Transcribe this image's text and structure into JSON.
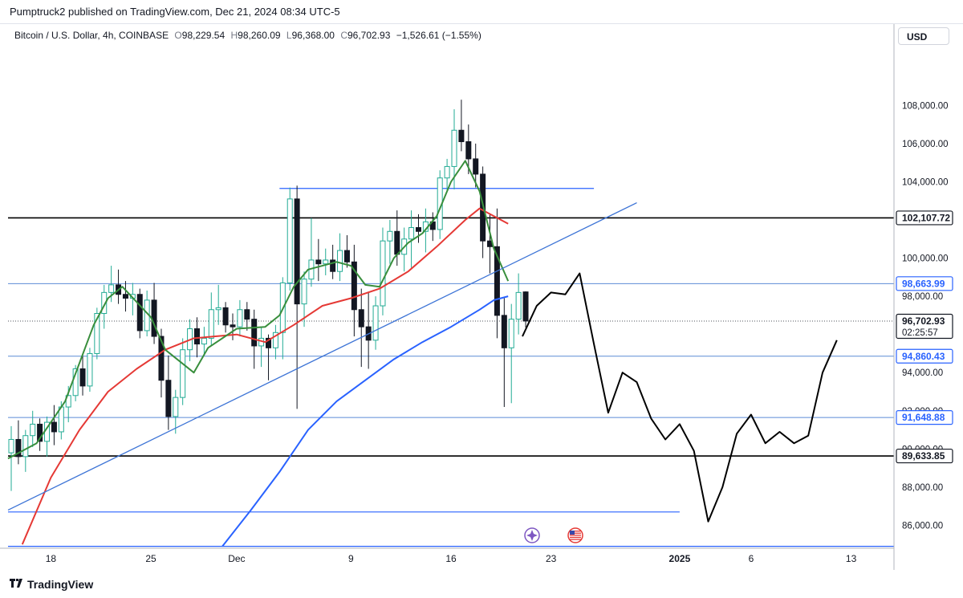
{
  "header": {
    "text": "Pumptruck2 published on TradingView.com, Dec 21, 2024 08:34 UTC-5"
  },
  "symbol": {
    "name": "Bitcoin / U.S. Dollar, 4h, COINBASE",
    "open_label": "O",
    "open": "98,229.54",
    "high_label": "H",
    "high": "98,260.09",
    "low_label": "L",
    "low": "96,368.00",
    "close_label": "C",
    "close": "96,702.93",
    "change": "−1,526.61 (−1.55%)"
  },
  "currency_button": "USD",
  "branding": "TradingView",
  "colors": {
    "up": "#22ab94",
    "down": "#131722",
    "ma_short": "#388e3c",
    "ma_mid": "#e53935",
    "ma_long": "#2962ff",
    "hline_blue": "#5b8bd6",
    "hline_black": "#000000"
  },
  "chart_data": {
    "type": "candlestick",
    "title": "Bitcoin / U.S. Dollar, 4h, COINBASE",
    "price_axis": {
      "ylim": [
        84800,
        111000
      ],
      "ticks": [
        86000,
        88000,
        90000,
        92000,
        94000,
        96000,
        98000,
        100000,
        102000,
        104000,
        106000,
        108000
      ],
      "tick_labels": [
        "86,000.00",
        "88,000.00",
        "90,000.00",
        "92,000.00",
        "94,000.00",
        "96,000.00",
        "98,000.00",
        "100,000.00",
        "102,000.00",
        "104,000.00",
        "106,000.00",
        "108,000.00"
      ]
    },
    "time_axis": {
      "xlim": [
        "2024-11-15",
        "2025-01-16"
      ],
      "ticks": [
        "2024-11-18",
        "2024-11-25",
        "2024-12-01",
        "2024-12-09",
        "2024-12-16",
        "2024-12-23",
        "2025-01-01",
        "2025-01-06",
        "2025-01-13"
      ],
      "tick_labels": [
        "18",
        "25",
        "Dec",
        "9",
        "16",
        "23",
        "2025",
        "6",
        "13"
      ]
    },
    "price_labels": [
      {
        "value": 102107.72,
        "text": "102,107.72",
        "style": "black"
      },
      {
        "value": 98663.99,
        "text": "98,663.99",
        "style": "blue"
      },
      {
        "value": 96702.93,
        "text": "96,702.93",
        "style": "dark",
        "countdown": "02:25:57"
      },
      {
        "value": 94860.43,
        "text": "94,860.43",
        "style": "blue"
      },
      {
        "value": 91648.88,
        "text": "91,648.88",
        "style": "blue"
      },
      {
        "value": 89633.85,
        "text": "89,633.85",
        "style": "black"
      }
    ],
    "horizontal_lines": [
      {
        "value": 102107.72,
        "from": "2024-11-15",
        "to": "2025-01-16",
        "color": "#000000",
        "width": 1.6
      },
      {
        "value": 98663.99,
        "from": "2024-11-15",
        "to": "2025-01-16",
        "color": "#5b8bd6",
        "width": 1
      },
      {
        "value": 94860.43,
        "from": "2024-11-15",
        "to": "2025-01-16",
        "color": "#5b8bd6",
        "width": 1
      },
      {
        "value": 91648.88,
        "from": "2024-11-15",
        "to": "2025-01-16",
        "color": "#5b8bd6",
        "width": 1
      },
      {
        "value": 89633.85,
        "from": "2024-11-15",
        "to": "2025-01-16",
        "color": "#000000",
        "width": 1.6
      },
      {
        "value": 103650,
        "from": "2024-12-04",
        "to": "2024-12-26",
        "color": "#2962ff",
        "width": 1.2
      },
      {
        "value": 86700,
        "from": "2024-11-15",
        "to": "2025-01-01",
        "color": "#2962ff",
        "width": 1.2
      },
      {
        "value": 84900,
        "from": "2024-11-15",
        "to": "2025-01-16",
        "color": "#2962ff",
        "width": 1.2
      }
    ],
    "trendline": {
      "points": [
        [
          "2024-11-15",
          86800
        ],
        [
          "2024-12-29",
          102900
        ]
      ],
      "color": "#3d74d6"
    },
    "ma_short": {
      "color": "#388e3c",
      "points": [
        [
          "2024-11-15",
          89500
        ],
        [
          "2024-11-17",
          90300
        ],
        [
          "2024-11-19",
          92500
        ],
        [
          "2024-11-21",
          96500
        ],
        [
          "2024-11-22",
          97900
        ],
        [
          "2024-11-23",
          98500
        ],
        [
          "2024-11-25",
          96900
        ],
        [
          "2024-11-26",
          95200
        ],
        [
          "2024-11-28",
          94000
        ],
        [
          "2024-11-29",
          95300
        ],
        [
          "2024-12-01",
          96300
        ],
        [
          "2024-12-03",
          96400
        ],
        [
          "2024-12-04",
          97000
        ],
        [
          "2024-12-05",
          98500
        ],
        [
          "2024-12-06",
          99400
        ],
        [
          "2024-12-08",
          99800
        ],
        [
          "2024-12-09",
          99600
        ],
        [
          "2024-12-10",
          98600
        ],
        [
          "2024-12-11",
          98500
        ],
        [
          "2024-12-12",
          100000
        ],
        [
          "2024-12-13",
          100800
        ],
        [
          "2024-12-14",
          101300
        ],
        [
          "2024-12-15",
          102200
        ],
        [
          "2024-12-16",
          104000
        ],
        [
          "2024-12-17",
          105100
        ],
        [
          "2024-12-18",
          103500
        ],
        [
          "2024-12-19",
          100500
        ],
        [
          "2024-12-20",
          98800
        ]
      ]
    },
    "ma_mid": {
      "color": "#e53935",
      "points": [
        [
          "2024-11-16",
          85000
        ],
        [
          "2024-11-18",
          88500
        ],
        [
          "2024-11-20",
          91000
        ],
        [
          "2024-11-22",
          93000
        ],
        [
          "2024-11-24",
          94200
        ],
        [
          "2024-11-26",
          95200
        ],
        [
          "2024-11-28",
          95800
        ],
        [
          "2024-12-01",
          96000
        ],
        [
          "2024-12-03",
          95600
        ],
        [
          "2024-12-05",
          96500
        ],
        [
          "2024-12-07",
          97500
        ],
        [
          "2024-12-09",
          97900
        ],
        [
          "2024-12-11",
          98400
        ],
        [
          "2024-12-13",
          99300
        ],
        [
          "2024-12-15",
          100600
        ],
        [
          "2024-12-17",
          102000
        ],
        [
          "2024-12-18",
          102600
        ],
        [
          "2024-12-19",
          102200
        ],
        [
          "2024-12-20",
          101800
        ]
      ]
    },
    "ma_long": {
      "color": "#2962ff",
      "points": [
        [
          "2024-11-30",
          84900
        ],
        [
          "2024-12-02",
          86800
        ],
        [
          "2024-12-04",
          88800
        ],
        [
          "2024-12-06",
          91000
        ],
        [
          "2024-12-08",
          92500
        ],
        [
          "2024-12-10",
          93600
        ],
        [
          "2024-12-12",
          94700
        ],
        [
          "2024-12-14",
          95600
        ],
        [
          "2024-12-16",
          96400
        ],
        [
          "2024-12-18",
          97300
        ],
        [
          "2024-12-19",
          97800
        ],
        [
          "2024-12-20",
          98000
        ]
      ]
    },
    "projection": {
      "color": "#000000",
      "points": [
        [
          "2024-12-21",
          95900
        ],
        [
          "2024-12-22",
          97500
        ],
        [
          "2024-12-23",
          98200
        ],
        [
          "2024-12-24",
          98100
        ],
        [
          "2024-12-25",
          99200
        ],
        [
          "2024-12-26",
          95500
        ],
        [
          "2024-12-27",
          91900
        ],
        [
          "2024-12-28",
          94000
        ],
        [
          "2024-12-29",
          93500
        ],
        [
          "2024-12-30",
          91600
        ],
        [
          "2024-12-31",
          90500
        ],
        [
          "2025-01-01",
          91300
        ],
        [
          "2025-01-02",
          89900
        ],
        [
          "2025-01-03",
          86200
        ],
        [
          "2025-01-04",
          88000
        ],
        [
          "2025-01-05",
          90800
        ],
        [
          "2025-01-06",
          91800
        ],
        [
          "2025-01-07",
          90300
        ],
        [
          "2025-01-08",
          90900
        ],
        [
          "2025-01-09",
          90300
        ],
        [
          "2025-01-10",
          90700
        ],
        [
          "2025-01-11",
          94000
        ],
        [
          "2025-01-12",
          95700
        ]
      ]
    },
    "candles_ohlc": [
      [
        "2024-11-15",
        89800,
        91200,
        87800,
        90500
      ],
      [
        "2024-11-15T12",
        90500,
        91500,
        89200,
        89600
      ],
      [
        "2024-11-16",
        89600,
        91000,
        88800,
        90700
      ],
      [
        "2024-11-16T12",
        90700,
        92000,
        90100,
        91300
      ],
      [
        "2024-11-17",
        91300,
        91600,
        89900,
        90400
      ],
      [
        "2024-11-17T12",
        90400,
        91700,
        89600,
        91400
      ],
      [
        "2024-11-18",
        91400,
        92300,
        90200,
        90900
      ],
      [
        "2024-11-18T12",
        90900,
        92500,
        90500,
        92200
      ],
      [
        "2024-11-19",
        92200,
        93300,
        91400,
        92800
      ],
      [
        "2024-11-19T12",
        92800,
        94400,
        92500,
        94200
      ],
      [
        "2024-11-20",
        94200,
        95000,
        92800,
        93300
      ],
      [
        "2024-11-20T12",
        93300,
        95300,
        93000,
        95000
      ],
      [
        "2024-11-21",
        95000,
        97400,
        94700,
        97100
      ],
      [
        "2024-11-21T12",
        97100,
        98600,
        96300,
        98200
      ],
      [
        "2024-11-22",
        98200,
        99600,
        97700,
        98600
      ],
      [
        "2024-11-22T12",
        98600,
        99400,
        97600,
        98100
      ],
      [
        "2024-11-23",
        98100,
        98800,
        97200,
        97900
      ],
      [
        "2024-11-23T12",
        97900,
        98700,
        97000,
        98100
      ],
      [
        "2024-11-24",
        98100,
        98400,
        95800,
        96200
      ],
      [
        "2024-11-24T12",
        96200,
        98300,
        95900,
        97800
      ],
      [
        "2024-11-25",
        97800,
        98700,
        95500,
        95900
      ],
      [
        "2024-11-25T12",
        95900,
        96300,
        92700,
        93600
      ],
      [
        "2024-11-26",
        93600,
        94900,
        91000,
        91700
      ],
      [
        "2024-11-26T12",
        91700,
        93100,
        90800,
        92700
      ],
      [
        "2024-11-27",
        92700,
        95800,
        92300,
        95200
      ],
      [
        "2024-11-27T12",
        95200,
        96800,
        94600,
        96300
      ],
      [
        "2024-11-28",
        96300,
        96900,
        94800,
        95500
      ],
      [
        "2024-11-28T12",
        95500,
        96400,
        94900,
        95800
      ],
      [
        "2024-11-29",
        95800,
        98200,
        95400,
        97300
      ],
      [
        "2024-11-29T12",
        97300,
        98600,
        96500,
        97400
      ],
      [
        "2024-11-30",
        97400,
        97700,
        96100,
        96500
      ],
      [
        "2024-11-30T12",
        96500,
        97100,
        95700,
        96400
      ],
      [
        "2024-12-01",
        96400,
        97800,
        95900,
        97300
      ],
      [
        "2024-12-01T12",
        97300,
        97700,
        96200,
        96800
      ],
      [
        "2024-12-02",
        96800,
        97300,
        94200,
        95400
      ],
      [
        "2024-12-02T12",
        95400,
        96400,
        94300,
        95800
      ],
      [
        "2024-12-03",
        95800,
        96000,
        93600,
        95300
      ],
      [
        "2024-12-03T12",
        95300,
        96500,
        94700,
        96100
      ],
      [
        "2024-12-04",
        96100,
        99000,
        94700,
        98700
      ],
      [
        "2024-12-04T12",
        98700,
        103700,
        98300,
        103100
      ],
      [
        "2024-12-05",
        103100,
        103800,
        92100,
        97600
      ],
      [
        "2024-12-05T12",
        97600,
        99300,
        96400,
        98900
      ],
      [
        "2024-12-06",
        98900,
        102100,
        98500,
        99900
      ],
      [
        "2024-12-06T12",
        99900,
        101000,
        98800,
        99700
      ],
      [
        "2024-12-07",
        99700,
        100500,
        99100,
        99900
      ],
      [
        "2024-12-07T12",
        99900,
        100700,
        98900,
        99300
      ],
      [
        "2024-12-08",
        99300,
        101300,
        98800,
        100400
      ],
      [
        "2024-12-08T12",
        100400,
        101200,
        99500,
        99800
      ],
      [
        "2024-12-09",
        99800,
        100700,
        95900,
        97300
      ],
      [
        "2024-12-09T12",
        97300,
        98400,
        94300,
        96400
      ],
      [
        "2024-12-10",
        96400,
        98200,
        94200,
        95700
      ],
      [
        "2024-12-10T12",
        95700,
        98000,
        95200,
        97500
      ],
      [
        "2024-12-11",
        97500,
        101600,
        97000,
        100900
      ],
      [
        "2024-12-11T12",
        100900,
        102000,
        99700,
        101400
      ],
      [
        "2024-12-12",
        101400,
        102500,
        99600,
        100200
      ],
      [
        "2024-12-12T12",
        100200,
        101600,
        99300,
        101000
      ],
      [
        "2024-12-13",
        101000,
        102500,
        99500,
        101600
      ],
      [
        "2024-12-13T12",
        101600,
        102300,
        100800,
        101400
      ],
      [
        "2024-12-14",
        101400,
        102600,
        100300,
        101900
      ],
      [
        "2024-12-14T12",
        101900,
        102400,
        100900,
        101500
      ],
      [
        "2024-12-15",
        101500,
        104600,
        101000,
        104200
      ],
      [
        "2024-12-15T12",
        104200,
        105200,
        103500,
        104800
      ],
      [
        "2024-12-16",
        104800,
        107800,
        103600,
        106700
      ],
      [
        "2024-12-16T12",
        106700,
        108300,
        105600,
        106100
      ],
      [
        "2024-12-17",
        106100,
        107000,
        104400,
        105200
      ],
      [
        "2024-12-17T12",
        105200,
        106000,
        103700,
        104400
      ],
      [
        "2024-12-18",
        104400,
        104800,
        100000,
        100900
      ],
      [
        "2024-12-18T12",
        100900,
        102300,
        99200,
        100600
      ],
      [
        "2024-12-19",
        100600,
        102600,
        95800,
        97000
      ],
      [
        "2024-12-19T12",
        97000,
        97900,
        92200,
        95300
      ],
      [
        "2024-12-20",
        95300,
        97600,
        92400,
        96800
      ],
      [
        "2024-12-20T12",
        96800,
        99200,
        96000,
        98200
      ],
      [
        "2024-12-21",
        98229.54,
        98260.09,
        96368,
        96702.93
      ]
    ]
  }
}
